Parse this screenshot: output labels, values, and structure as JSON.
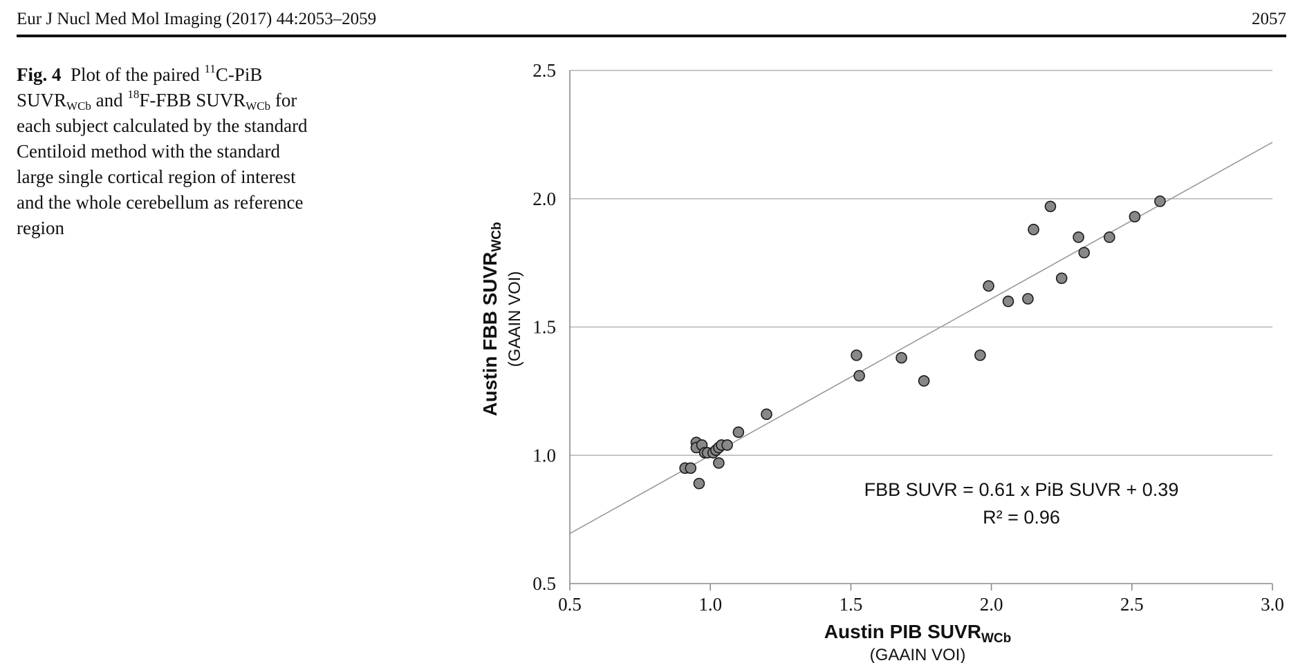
{
  "header": {
    "journal": "Eur J Nucl Med Mol Imaging (2017) 44:2053–2059",
    "page_number": "2057"
  },
  "caption": {
    "label": "Fig. 4",
    "t1": "Plot of the paired ",
    "iso1": "11",
    "t2": "C-PiB SUVR",
    "sub1": "WCb",
    "t3": " and ",
    "iso2": "18",
    "t4": "F-FBB SUVR",
    "sub2": "WCb",
    "t5": " for each subject calculated by the standard Centiloid method with the standard large single cortical region of interest and the whole cerebellum as reference region"
  },
  "chart_data": {
    "type": "scatter",
    "title": "",
    "xlabel_main": "Austin PIB SUVR",
    "xlabel_sub": "WCb",
    "xlabel_note": "(GAAIN VOI)",
    "ylabel_main": "Austin FBB SUVR",
    "ylabel_sub": "WCb",
    "ylabel_note": "(GAAIN VOI)",
    "xlim": [
      0.5,
      3.0
    ],
    "ylim": [
      0.5,
      2.5
    ],
    "x_ticks": [
      "0.5",
      "1.0",
      "1.5",
      "2.0",
      "2.5",
      "3.0"
    ],
    "y_ticks": [
      "0.5",
      "1.0",
      "1.5",
      "2.0",
      "2.5"
    ],
    "grid": "horizontal",
    "equation": "FBB SUVR = 0.61 x PiB SUVR + 0.39",
    "r_squared": "R² = 0.96",
    "regression": {
      "slope": 0.61,
      "intercept": 0.39
    },
    "marker_color": "#888888",
    "points": [
      [
        0.91,
        0.95
      ],
      [
        0.93,
        0.95
      ],
      [
        0.95,
        1.05
      ],
      [
        0.95,
        1.03
      ],
      [
        0.96,
        0.89
      ],
      [
        0.97,
        1.04
      ],
      [
        0.98,
        1.01
      ],
      [
        0.99,
        1.01
      ],
      [
        1.01,
        1.01
      ],
      [
        1.02,
        1.02
      ],
      [
        1.03,
        1.03
      ],
      [
        1.03,
        0.97
      ],
      [
        1.04,
        1.04
      ],
      [
        1.06,
        1.04
      ],
      [
        1.1,
        1.09
      ],
      [
        1.2,
        1.16
      ],
      [
        1.52,
        1.39
      ],
      [
        1.53,
        1.31
      ],
      [
        1.68,
        1.38
      ],
      [
        1.76,
        1.29
      ],
      [
        1.96,
        1.39
      ],
      [
        1.99,
        1.66
      ],
      [
        2.06,
        1.6
      ],
      [
        2.13,
        1.61
      ],
      [
        2.15,
        1.88
      ],
      [
        2.21,
        1.97
      ],
      [
        2.25,
        1.69
      ],
      [
        2.31,
        1.85
      ],
      [
        2.33,
        1.79
      ],
      [
        2.42,
        1.85
      ],
      [
        2.51,
        1.93
      ],
      [
        2.6,
        1.99
      ]
    ]
  }
}
